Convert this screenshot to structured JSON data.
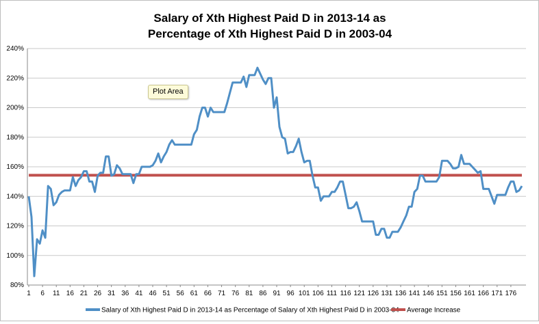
{
  "chart_data": {
    "type": "line",
    "title_lines": [
      "Salary of Xth Highest Paid D in 2013-14 as",
      "Percentage of Xth Highest Paid D in 2003-04"
    ],
    "y_ticks": [
      "80%",
      "100%",
      "120%",
      "140%",
      "160%",
      "180%",
      "200%",
      "220%",
      "240%"
    ],
    "x_ticks": [
      "1",
      "6",
      "11",
      "16",
      "21",
      "26",
      "31",
      "36",
      "41",
      "46",
      "51",
      "56",
      "61",
      "66",
      "71",
      "76",
      "81",
      "86",
      "91",
      "96",
      "101",
      "106",
      "111",
      "116",
      "121",
      "126",
      "131",
      "136",
      "141",
      "146",
      "151",
      "156",
      "161",
      "166",
      "171",
      "176"
    ],
    "ylim": [
      80,
      240
    ],
    "xlim": [
      1,
      180
    ],
    "grid": true,
    "legend_position": "bottom",
    "tooltip": "Plot Area",
    "series": [
      {
        "name": "Salary of Xth Highest Paid D in 2013-14 as Percentage of Salary of Xth Highest Paid D in 2003-04",
        "color": "#4f8fc6",
        "x": [
          1,
          2,
          3,
          4,
          5,
          6,
          7,
          8,
          9,
          10,
          11,
          12,
          13,
          14,
          15,
          16,
          17,
          18,
          19,
          20,
          21,
          22,
          23,
          24,
          25,
          26,
          27,
          28,
          29,
          30,
          31,
          32,
          33,
          34,
          35,
          36,
          37,
          38,
          39,
          40,
          41,
          42,
          43,
          44,
          45,
          46,
          47,
          48,
          49,
          50,
          51,
          52,
          53,
          54,
          55,
          56,
          57,
          58,
          59,
          60,
          61,
          62,
          63,
          64,
          65,
          66,
          67,
          68,
          69,
          70,
          71,
          72,
          73,
          74,
          75,
          76,
          77,
          78,
          79,
          80,
          81,
          82,
          83,
          84,
          85,
          86,
          87,
          88,
          89,
          90,
          91,
          92,
          93,
          94,
          95,
          96,
          97,
          98,
          99,
          100,
          101,
          102,
          103,
          104,
          105,
          106,
          107,
          108,
          109,
          110,
          111,
          112,
          113,
          114,
          115,
          116,
          117,
          118,
          119,
          120,
          121,
          122,
          123,
          124,
          125,
          126,
          127,
          128,
          129,
          130,
          131,
          132,
          133,
          134,
          135,
          136,
          137,
          138,
          139,
          140,
          141,
          142,
          143,
          144,
          145,
          146,
          147,
          148,
          149,
          150,
          151,
          152,
          153,
          154,
          155,
          156,
          157,
          158,
          159,
          160,
          161,
          162,
          163,
          164,
          165,
          166,
          167,
          168,
          169,
          170,
          171,
          172,
          173,
          174,
          175,
          176,
          177,
          178,
          179,
          180
        ],
        "values": [
          140,
          126,
          86,
          111,
          108,
          117,
          112,
          147,
          145,
          134,
          136,
          141,
          143,
          144,
          144,
          144,
          153,
          147,
          151,
          153,
          157,
          157,
          150,
          150,
          143,
          154,
          156,
          156,
          167,
          167,
          154,
          155,
          161,
          159,
          155,
          155,
          155,
          155,
          149,
          155,
          155,
          160,
          160,
          160,
          160,
          161,
          164,
          169,
          163,
          167,
          170,
          175,
          178,
          175,
          175,
          175,
          175,
          175,
          175,
          175,
          182,
          185,
          194,
          200,
          200,
          194,
          200,
          197,
          197,
          197,
          197,
          197,
          203,
          210,
          217,
          217,
          217,
          217,
          221,
          214,
          222,
          222,
          222,
          227,
          223,
          219,
          216,
          220,
          220,
          200,
          207,
          187,
          180,
          179,
          169,
          170,
          170,
          174,
          179,
          170,
          163,
          164,
          164,
          154,
          146,
          146,
          137,
          140,
          140,
          140,
          143,
          143,
          146,
          150,
          150,
          141,
          132,
          132,
          133,
          136,
          130,
          123,
          123,
          123,
          123,
          123,
          114,
          114,
          118,
          118,
          112,
          112,
          116,
          116,
          116,
          119,
          123,
          127,
          133,
          133,
          143,
          145,
          154,
          154,
          150,
          150,
          150,
          150,
          150,
          153,
          164,
          164,
          164,
          162,
          159,
          159,
          160,
          168,
          162,
          162,
          162,
          160,
          158,
          156,
          157,
          145,
          145,
          145,
          140,
          135,
          141,
          141,
          141,
          141,
          146,
          150,
          150,
          143,
          144,
          147
        ]
      },
      {
        "name": "Average Increase",
        "color": "#c0504d",
        "x": [
          1,
          180
        ],
        "values": [
          154.3,
          154.3
        ]
      }
    ]
  }
}
